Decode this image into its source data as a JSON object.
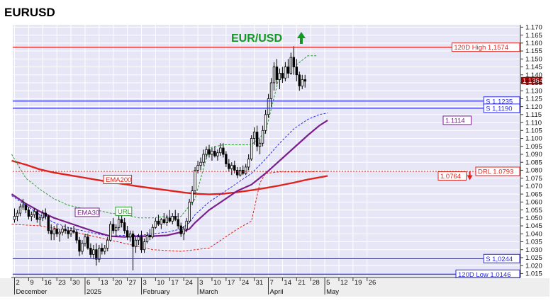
{
  "title": "EURUSD",
  "colors": {
    "plot_bg": "#e6e6f6",
    "grid": "#ffffff",
    "candle_up": "#ffffff",
    "candle_down": "#000000",
    "ema200": "#e0231c",
    "ema30": "#7a1f8c",
    "url_line": "#2e9e2e",
    "drl_line": "#e0231c",
    "blue_dash": "#2b2be0",
    "resistance": "#e0231c",
    "support": "#2b2be0",
    "title_green": "#119922",
    "axis_bg": "#eeeeee"
  },
  "chart_data": {
    "type": "candlestick",
    "title": "EUR/USD",
    "trend_arrow": "up",
    "ylim": [
      1.0125,
      1.1715
    ],
    "y_ticks": [
      "1.015",
      "1.020",
      "1.025",
      "1.030",
      "1.035",
      "1.040",
      "1.045",
      "1.050",
      "1.055",
      "1.060",
      "1.065",
      "1.070",
      "1.075",
      "1.080",
      "1.085",
      "1.090",
      "1.095",
      "1.100",
      "1.105",
      "1.110",
      "1.115",
      "1.120",
      "1.125",
      "1.130",
      "1.135",
      "1.140",
      "1.145",
      "1.150",
      "1.155",
      "1.160",
      "1.165",
      "1.170"
    ],
    "x_ticks": [
      "2",
      "9",
      "16",
      "23",
      "30",
      "6",
      "13",
      "20",
      "27",
      "3",
      "10",
      "17",
      "24",
      "3",
      "10",
      "17",
      "24",
      "31",
      "7",
      "14",
      "21",
      "28",
      "5",
      "12",
      "19",
      "26"
    ],
    "months": [
      {
        "label": "December",
        "tick": 0
      },
      {
        "label": "2025",
        "tick": 5
      },
      {
        "label": "February",
        "tick": 9
      },
      {
        "label": "March",
        "tick": 13
      },
      {
        "label": "April",
        "tick": 18
      },
      {
        "label": "May",
        "tick": 22
      }
    ],
    "first_tick_date": "2024-12-02",
    "horizontal_levels": [
      {
        "label": "120D High 1,1574",
        "value": 1.1574,
        "color": "#e0231c"
      },
      {
        "label": "S 1,1235",
        "value": 1.1235,
        "color": "#2b2be0"
      },
      {
        "label": "S 1,1190",
        "value": 1.119,
        "color": "#2b2be0"
      },
      {
        "label": "S 1,0244",
        "value": 1.0244,
        "color": "#2b2be0"
      },
      {
        "label": "120D Low 1,0146",
        "value": 1.0146,
        "color": "#2b2be0"
      }
    ],
    "value_labels": [
      {
        "label": "1.1114",
        "value": 1.1114,
        "color": "#7a1f8c"
      },
      {
        "label": "DRL 1.0793",
        "value": 1.0793,
        "color": "#e0231c"
      },
      {
        "label": "1.0764",
        "value": 1.0764,
        "color": "#e0231c"
      },
      {
        "label": "1.1364",
        "value": 1.1364,
        "color": "#a00000"
      }
    ],
    "series_labels": [
      {
        "label": "EMA200",
        "color": "#e0231c"
      },
      {
        "label": "EMA30",
        "color": "#7a1f8c"
      },
      {
        "label": "URL",
        "color": "#2e9e2e"
      }
    ],
    "candles": [
      [
        1.049,
        1.056,
        1.047,
        1.051
      ],
      [
        1.051,
        1.055,
        1.048,
        1.053
      ],
      [
        1.053,
        1.059,
        1.051,
        1.057
      ],
      [
        1.057,
        1.062,
        1.055,
        1.058
      ],
      [
        1.058,
        1.059,
        1.053,
        1.055
      ],
      [
        1.055,
        1.057,
        1.049,
        1.051
      ],
      [
        1.051,
        1.054,
        1.048,
        1.052
      ],
      [
        1.052,
        1.056,
        1.05,
        1.054
      ],
      [
        1.054,
        1.055,
        1.047,
        1.049
      ],
      [
        1.049,
        1.052,
        1.045,
        1.05
      ],
      [
        1.05,
        1.055,
        1.048,
        1.053
      ],
      [
        1.053,
        1.056,
        1.049,
        1.051
      ],
      [
        1.051,
        1.052,
        1.04,
        1.042
      ],
      [
        1.042,
        1.046,
        1.036,
        1.04
      ],
      [
        1.04,
        1.045,
        1.036,
        1.043
      ],
      [
        1.043,
        1.046,
        1.038,
        1.04
      ],
      [
        1.04,
        1.043,
        1.035,
        1.041
      ],
      [
        1.041,
        1.045,
        1.039,
        1.043
      ],
      [
        1.043,
        1.046,
        1.04,
        1.042
      ],
      [
        1.042,
        1.044,
        1.037,
        1.04
      ],
      [
        1.04,
        1.044,
        1.038,
        1.042
      ],
      [
        1.042,
        1.045,
        1.04,
        1.041
      ],
      [
        1.041,
        1.043,
        1.034,
        1.036
      ],
      [
        1.036,
        1.038,
        1.026,
        1.029
      ],
      [
        1.029,
        1.036,
        1.027,
        1.034
      ],
      [
        1.034,
        1.04,
        1.032,
        1.038
      ],
      [
        1.038,
        1.04,
        1.03,
        1.031
      ],
      [
        1.031,
        1.034,
        1.025,
        1.027
      ],
      [
        1.027,
        1.033,
        1.024,
        1.03
      ],
      [
        1.03,
        1.034,
        1.02,
        1.024
      ],
      [
        1.024,
        1.033,
        1.022,
        1.031
      ],
      [
        1.031,
        1.034,
        1.027,
        1.029
      ],
      [
        1.029,
        1.033,
        1.027,
        1.031
      ],
      [
        1.031,
        1.038,
        1.029,
        1.036
      ],
      [
        1.036,
        1.048,
        1.035,
        1.046
      ],
      [
        1.046,
        1.05,
        1.04,
        1.042
      ],
      [
        1.042,
        1.046,
        1.038,
        1.044
      ],
      [
        1.044,
        1.052,
        1.042,
        1.049
      ],
      [
        1.049,
        1.053,
        1.044,
        1.047
      ],
      [
        1.047,
        1.05,
        1.04,
        1.042
      ],
      [
        1.042,
        1.045,
        1.036,
        1.038
      ],
      [
        1.038,
        1.042,
        1.035,
        1.04
      ],
      [
        1.04,
        1.042,
        1.017,
        1.032
      ],
      [
        1.032,
        1.038,
        1.028,
        1.036
      ],
      [
        1.036,
        1.04,
        1.033,
        1.038
      ],
      [
        1.038,
        1.042,
        1.028,
        1.03
      ],
      [
        1.03,
        1.037,
        1.028,
        1.035
      ],
      [
        1.035,
        1.041,
        1.034,
        1.039
      ],
      [
        1.039,
        1.043,
        1.036,
        1.038
      ],
      [
        1.038,
        1.046,
        1.037,
        1.044
      ],
      [
        1.044,
        1.05,
        1.043,
        1.048
      ],
      [
        1.048,
        1.052,
        1.045,
        1.046
      ],
      [
        1.046,
        1.05,
        1.043,
        1.049
      ],
      [
        1.049,
        1.053,
        1.046,
        1.047
      ],
      [
        1.047,
        1.052,
        1.045,
        1.05
      ],
      [
        1.05,
        1.055,
        1.047,
        1.048
      ],
      [
        1.048,
        1.053,
        1.046,
        1.051
      ],
      [
        1.051,
        1.055,
        1.048,
        1.049
      ],
      [
        1.049,
        1.053,
        1.043,
        1.045
      ],
      [
        1.045,
        1.047,
        1.038,
        1.04
      ],
      [
        1.04,
        1.045,
        1.036,
        1.043
      ],
      [
        1.043,
        1.05,
        1.041,
        1.048
      ],
      [
        1.048,
        1.062,
        1.047,
        1.06
      ],
      [
        1.06,
        1.07,
        1.058,
        1.067
      ],
      [
        1.067,
        1.082,
        1.065,
        1.08
      ],
      [
        1.08,
        1.086,
        1.078,
        1.083
      ],
      [
        1.083,
        1.088,
        1.08,
        1.085
      ],
      [
        1.085,
        1.093,
        1.083,
        1.09
      ],
      [
        1.09,
        1.095,
        1.087,
        1.093
      ],
      [
        1.093,
        1.096,
        1.088,
        1.09
      ],
      [
        1.09,
        1.094,
        1.086,
        1.092
      ],
      [
        1.092,
        1.095,
        1.088,
        1.089
      ],
      [
        1.089,
        1.093,
        1.086,
        1.091
      ],
      [
        1.091,
        1.097,
        1.089,
        1.094
      ],
      [
        1.094,
        1.097,
        1.088,
        1.09
      ],
      [
        1.09,
        1.092,
        1.082,
        1.084
      ],
      [
        1.084,
        1.087,
        1.079,
        1.081
      ],
      [
        1.081,
        1.085,
        1.077,
        1.083
      ],
      [
        1.083,
        1.086,
        1.078,
        1.08
      ],
      [
        1.08,
        1.082,
        1.075,
        1.077
      ],
      [
        1.077,
        1.082,
        1.076,
        1.08
      ],
      [
        1.08,
        1.083,
        1.077,
        1.078
      ],
      [
        1.078,
        1.084,
        1.077,
        1.082
      ],
      [
        1.082,
        1.09,
        1.08,
        1.087
      ],
      [
        1.087,
        1.102,
        1.086,
        1.1
      ],
      [
        1.1,
        1.107,
        1.096,
        1.104
      ],
      [
        1.104,
        1.108,
        1.092,
        1.095
      ],
      [
        1.095,
        1.1,
        1.09,
        1.097
      ],
      [
        1.097,
        1.108,
        1.095,
        1.105
      ],
      [
        1.105,
        1.118,
        1.103,
        1.115
      ],
      [
        1.115,
        1.128,
        1.113,
        1.125
      ],
      [
        1.125,
        1.138,
        1.12,
        1.135
      ],
      [
        1.135,
        1.148,
        1.13,
        1.145
      ],
      [
        1.145,
        1.15,
        1.134,
        1.137
      ],
      [
        1.137,
        1.144,
        1.131,
        1.141
      ],
      [
        1.141,
        1.145,
        1.135,
        1.138
      ],
      [
        1.138,
        1.148,
        1.136,
        1.145
      ],
      [
        1.145,
        1.15,
        1.138,
        1.141
      ],
      [
        1.141,
        1.154,
        1.14,
        1.151
      ],
      [
        1.151,
        1.158,
        1.14,
        1.145
      ],
      [
        1.145,
        1.15,
        1.136,
        1.14
      ],
      [
        1.14,
        1.142,
        1.13,
        1.133
      ],
      [
        1.133,
        1.14,
        1.131,
        1.137
      ],
      [
        1.137,
        1.14,
        1.132,
        1.136
      ]
    ],
    "ema200": [
      [
        -1,
        1.086
      ],
      [
        4,
        1.0835
      ],
      [
        9,
        1.0805
      ],
      [
        14,
        1.0785
      ],
      [
        19,
        1.077
      ],
      [
        24,
        1.0755
      ],
      [
        29,
        1.074
      ],
      [
        34,
        1.0725
      ],
      [
        39,
        1.0712
      ],
      [
        44,
        1.0698
      ],
      [
        49,
        1.0686
      ],
      [
        54,
        1.0674
      ],
      [
        59,
        1.0662
      ],
      [
        64,
        1.0652
      ],
      [
        69,
        1.0648
      ],
      [
        74,
        1.0652
      ],
      [
        79,
        1.0662
      ],
      [
        84,
        1.0674
      ],
      [
        89,
        1.0688
      ],
      [
        94,
        1.0704
      ],
      [
        99,
        1.0722
      ],
      [
        104,
        1.0742
      ],
      [
        109,
        1.0758
      ],
      [
        111,
        1.0764
      ]
    ],
    "ema30": [
      [
        -1,
        1.065
      ],
      [
        4,
        1.059
      ],
      [
        9,
        1.054
      ],
      [
        14,
        1.05
      ],
      [
        19,
        1.047
      ],
      [
        24,
        1.044
      ],
      [
        29,
        1.041
      ],
      [
        34,
        1.0385
      ],
      [
        39,
        1.038
      ],
      [
        44,
        1.0385
      ],
      [
        49,
        1.0385
      ],
      [
        54,
        1.039
      ],
      [
        59,
        1.041
      ],
      [
        62,
        1.043
      ],
      [
        64,
        1.047
      ],
      [
        69,
        1.055
      ],
      [
        74,
        1.061
      ],
      [
        79,
        1.067
      ],
      [
        84,
        1.071
      ],
      [
        89,
        1.078
      ],
      [
        94,
        1.086
      ],
      [
        99,
        1.094
      ],
      [
        104,
        1.102
      ],
      [
        108,
        1.108
      ],
      [
        111,
        1.1114
      ]
    ],
    "blue_dash": [
      [
        -1,
        1.064
      ],
      [
        4,
        1.058
      ],
      [
        9,
        1.052
      ],
      [
        14,
        1.047
      ],
      [
        19,
        1.044
      ],
      [
        24,
        1.042
      ],
      [
        29,
        1.04
      ],
      [
        34,
        1.0385
      ],
      [
        39,
        1.039
      ],
      [
        44,
        1.039
      ],
      [
        49,
        1.04
      ],
      [
        54,
        1.041
      ],
      [
        59,
        1.043
      ],
      [
        62,
        1.047
      ],
      [
        64,
        1.052
      ],
      [
        69,
        1.06
      ],
      [
        74,
        1.066
      ],
      [
        79,
        1.072
      ],
      [
        84,
        1.078
      ],
      [
        89,
        1.087
      ],
      [
        94,
        1.097
      ],
      [
        99,
        1.106
      ],
      [
        104,
        1.112
      ],
      [
        108,
        1.115
      ],
      [
        111,
        1.116
      ]
    ],
    "url": [
      [
        -1,
        1.09
      ],
      [
        4,
        1.075
      ],
      [
        9,
        1.068
      ],
      [
        14,
        1.062
      ],
      [
        19,
        1.058
      ],
      [
        24,
        1.056
      ],
      [
        29,
        1.055
      ],
      [
        34,
        1.053
      ],
      [
        39,
        1.052
      ],
      [
        44,
        1.05
      ],
      [
        49,
        1.05
      ],
      [
        54,
        1.051
      ],
      [
        59,
        1.051
      ],
      [
        64,
        1.062
      ],
      [
        69,
        1.094
      ],
      [
        74,
        1.096
      ],
      [
        79,
        1.096
      ],
      [
        84,
        1.096
      ],
      [
        89,
        1.104
      ],
      [
        94,
        1.14
      ],
      [
        99,
        1.145
      ],
      [
        104,
        1.152
      ],
      [
        107,
        1.152
      ]
    ],
    "drl": [
      [
        -1,
        1.046
      ],
      [
        9,
        1.045
      ],
      [
        19,
        1.042
      ],
      [
        29,
        1.038
      ],
      [
        39,
        1.034
      ],
      [
        49,
        1.03
      ],
      [
        59,
        1.029
      ],
      [
        64,
        1.03
      ],
      [
        69,
        1.031
      ],
      [
        79,
        1.043
      ],
      [
        84,
        1.048
      ],
      [
        87,
        1.072
      ],
      [
        89,
        1.078
      ],
      [
        94,
        1.079
      ],
      [
        104,
        1.079
      ],
      [
        111,
        1.0793
      ]
    ]
  }
}
